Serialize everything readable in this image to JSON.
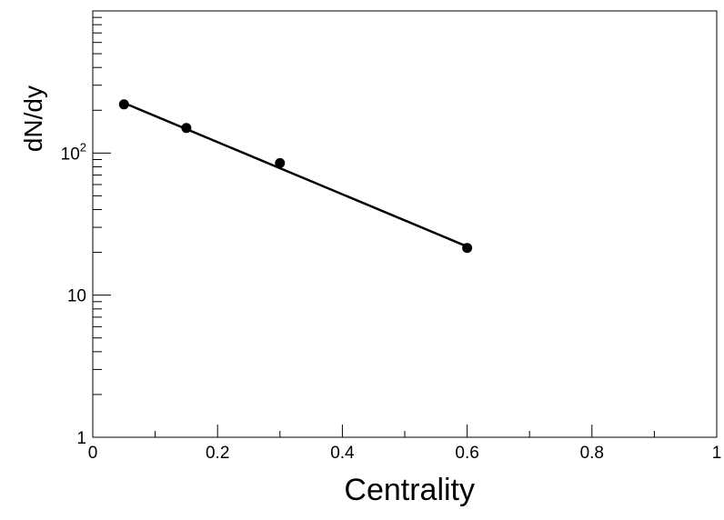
{
  "chart_data": {
    "type": "scatter",
    "xlabel": "Centrality",
    "ylabel": "dN/dy",
    "xlim": [
      0,
      1
    ],
    "ylim": [
      1,
      1000
    ],
    "y_scale": "log",
    "grid": false,
    "x_tick_labels": [
      "0",
      "0.2",
      "0.4",
      "0.6",
      "0.8",
      "1"
    ],
    "x_tick_values": [
      0,
      0.2,
      0.4,
      0.6,
      0.8,
      1
    ],
    "y_tick_labels": [
      {
        "value": 1,
        "label": "1"
      },
      {
        "value": 10,
        "label": "10"
      },
      {
        "value": 100,
        "base": "10",
        "exponent": "2"
      }
    ],
    "series": [
      {
        "points": [
          {
            "x": 0.05,
            "y": 220
          },
          {
            "x": 0.15,
            "y": 150
          },
          {
            "x": 0.3,
            "y": 85
          },
          {
            "x": 0.6,
            "y": 21.5
          }
        ],
        "fit_line": {
          "x": [
            0.05,
            0.6
          ],
          "y": [
            225,
            22
          ]
        }
      }
    ]
  }
}
